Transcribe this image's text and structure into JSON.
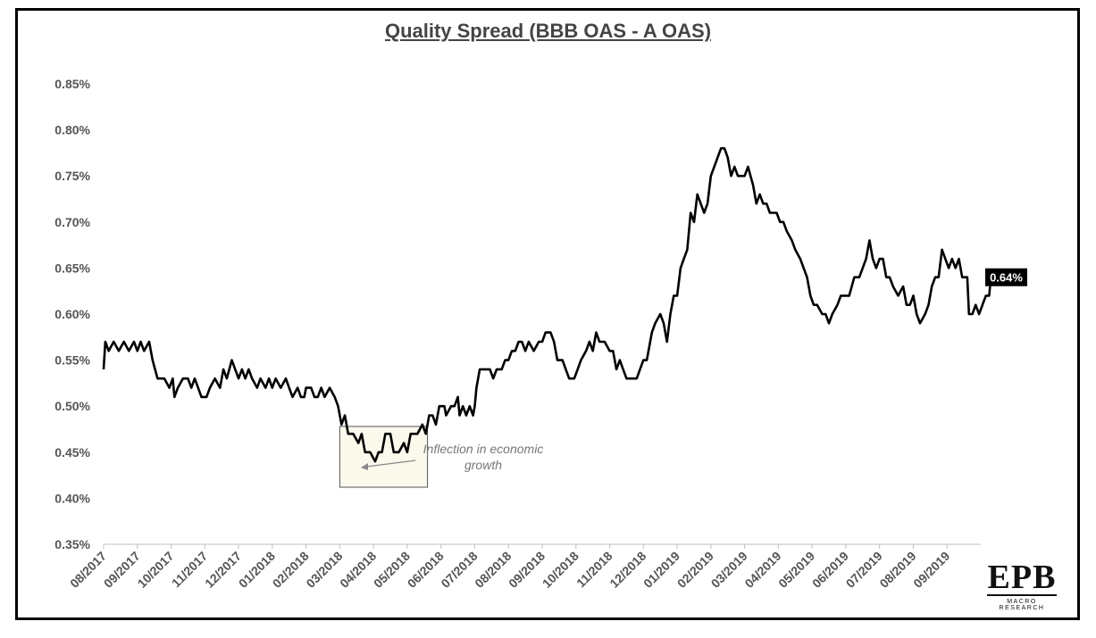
{
  "chart_data": {
    "type": "line",
    "title": "Quality Spread (BBB OAS - A OAS)",
    "xlabel": "",
    "ylabel": "",
    "ylim": [
      0.35,
      0.85
    ],
    "y_ticks": [
      "0.35%",
      "0.40%",
      "0.45%",
      "0.50%",
      "0.55%",
      "0.60%",
      "0.65%",
      "0.70%",
      "0.75%",
      "0.80%",
      "0.85%"
    ],
    "x_ticks": [
      "08/2017",
      "09/2017",
      "10/2017",
      "11/2017",
      "12/2017",
      "01/2018",
      "02/2018",
      "03/2018",
      "04/2018",
      "05/2018",
      "06/2018",
      "07/2018",
      "08/2018",
      "09/2018",
      "10/2018",
      "11/2018",
      "12/2018",
      "01/2019",
      "02/2019",
      "03/2019",
      "04/2019",
      "05/2019",
      "06/2019",
      "07/2019",
      "08/2019",
      "09/2019"
    ],
    "x_range_months": [
      0,
      26
    ],
    "grid": false,
    "legend": "none",
    "line_color": "#000000",
    "series": [
      {
        "name": "",
        "points": [
          [
            0.0,
            0.54
          ],
          [
            0.05,
            0.57
          ],
          [
            0.15,
            0.56
          ],
          [
            0.3,
            0.57
          ],
          [
            0.45,
            0.56
          ],
          [
            0.6,
            0.57
          ],
          [
            0.75,
            0.56
          ],
          [
            0.9,
            0.57
          ],
          [
            1.0,
            0.56
          ],
          [
            1.1,
            0.57
          ],
          [
            1.2,
            0.56
          ],
          [
            1.35,
            0.57
          ],
          [
            1.45,
            0.55
          ],
          [
            1.6,
            0.53
          ],
          [
            1.8,
            0.53
          ],
          [
            1.95,
            0.52
          ],
          [
            2.05,
            0.53
          ],
          [
            2.1,
            0.51
          ],
          [
            2.2,
            0.52
          ],
          [
            2.35,
            0.53
          ],
          [
            2.5,
            0.53
          ],
          [
            2.6,
            0.52
          ],
          [
            2.7,
            0.53
          ],
          [
            2.8,
            0.52
          ],
          [
            2.9,
            0.51
          ],
          [
            3.05,
            0.51
          ],
          [
            3.15,
            0.52
          ],
          [
            3.3,
            0.53
          ],
          [
            3.45,
            0.52
          ],
          [
            3.55,
            0.54
          ],
          [
            3.65,
            0.53
          ],
          [
            3.8,
            0.55
          ],
          [
            3.9,
            0.54
          ],
          [
            4.0,
            0.53
          ],
          [
            4.1,
            0.54
          ],
          [
            4.2,
            0.53
          ],
          [
            4.3,
            0.54
          ],
          [
            4.4,
            0.53
          ],
          [
            4.55,
            0.52
          ],
          [
            4.65,
            0.53
          ],
          [
            4.8,
            0.52
          ],
          [
            4.9,
            0.53
          ],
          [
            5.0,
            0.52
          ],
          [
            5.1,
            0.53
          ],
          [
            5.25,
            0.52
          ],
          [
            5.4,
            0.53
          ],
          [
            5.5,
            0.52
          ],
          [
            5.6,
            0.51
          ],
          [
            5.75,
            0.52
          ],
          [
            5.85,
            0.51
          ],
          [
            5.95,
            0.51
          ],
          [
            6.0,
            0.52
          ],
          [
            6.15,
            0.52
          ],
          [
            6.25,
            0.51
          ],
          [
            6.35,
            0.51
          ],
          [
            6.45,
            0.52
          ],
          [
            6.55,
            0.51
          ],
          [
            6.7,
            0.52
          ],
          [
            6.85,
            0.51
          ],
          [
            6.95,
            0.5
          ],
          [
            7.05,
            0.48
          ],
          [
            7.15,
            0.49
          ],
          [
            7.25,
            0.47
          ],
          [
            7.4,
            0.47
          ],
          [
            7.55,
            0.46
          ],
          [
            7.65,
            0.47
          ],
          [
            7.75,
            0.45
          ],
          [
            7.9,
            0.45
          ],
          [
            8.05,
            0.44
          ],
          [
            8.15,
            0.45
          ],
          [
            8.25,
            0.45
          ],
          [
            8.35,
            0.47
          ],
          [
            8.5,
            0.47
          ],
          [
            8.6,
            0.45
          ],
          [
            8.75,
            0.45
          ],
          [
            8.9,
            0.46
          ],
          [
            9.0,
            0.45
          ],
          [
            9.1,
            0.47
          ],
          [
            9.3,
            0.47
          ],
          [
            9.45,
            0.48
          ],
          [
            9.55,
            0.47
          ],
          [
            9.65,
            0.49
          ],
          [
            9.75,
            0.49
          ],
          [
            9.85,
            0.48
          ],
          [
            9.95,
            0.5
          ],
          [
            10.1,
            0.5
          ],
          [
            10.15,
            0.49
          ],
          [
            10.3,
            0.5
          ],
          [
            10.4,
            0.5
          ],
          [
            10.5,
            0.51
          ],
          [
            10.55,
            0.49
          ],
          [
            10.65,
            0.5
          ],
          [
            10.75,
            0.49
          ],
          [
            10.85,
            0.5
          ],
          [
            10.95,
            0.49
          ],
          [
            11.0,
            0.5
          ],
          [
            11.05,
            0.52
          ],
          [
            11.15,
            0.54
          ],
          [
            11.3,
            0.54
          ],
          [
            11.45,
            0.54
          ],
          [
            11.55,
            0.53
          ],
          [
            11.65,
            0.54
          ],
          [
            11.8,
            0.54
          ],
          [
            11.9,
            0.55
          ],
          [
            12.0,
            0.55
          ],
          [
            12.1,
            0.56
          ],
          [
            12.2,
            0.56
          ],
          [
            12.3,
            0.57
          ],
          [
            12.4,
            0.57
          ],
          [
            12.5,
            0.56
          ],
          [
            12.6,
            0.57
          ],
          [
            12.75,
            0.56
          ],
          [
            12.9,
            0.57
          ],
          [
            13.0,
            0.57
          ],
          [
            13.1,
            0.58
          ],
          [
            13.25,
            0.58
          ],
          [
            13.35,
            0.57
          ],
          [
            13.45,
            0.55
          ],
          [
            13.6,
            0.55
          ],
          [
            13.7,
            0.54
          ],
          [
            13.8,
            0.53
          ],
          [
            13.95,
            0.53
          ],
          [
            14.05,
            0.54
          ],
          [
            14.15,
            0.55
          ],
          [
            14.3,
            0.56
          ],
          [
            14.4,
            0.57
          ],
          [
            14.5,
            0.56
          ],
          [
            14.6,
            0.58
          ],
          [
            14.7,
            0.57
          ],
          [
            14.85,
            0.57
          ],
          [
            15.0,
            0.56
          ],
          [
            15.1,
            0.56
          ],
          [
            15.2,
            0.54
          ],
          [
            15.3,
            0.55
          ],
          [
            15.4,
            0.54
          ],
          [
            15.5,
            0.53
          ],
          [
            15.65,
            0.53
          ],
          [
            15.8,
            0.53
          ],
          [
            15.9,
            0.54
          ],
          [
            16.0,
            0.55
          ],
          [
            16.1,
            0.55
          ],
          [
            16.25,
            0.58
          ],
          [
            16.35,
            0.59
          ],
          [
            16.5,
            0.6
          ],
          [
            16.6,
            0.59
          ],
          [
            16.7,
            0.57
          ],
          [
            16.8,
            0.6
          ],
          [
            16.9,
            0.62
          ],
          [
            17.0,
            0.62
          ],
          [
            17.1,
            0.65
          ],
          [
            17.2,
            0.66
          ],
          [
            17.3,
            0.67
          ],
          [
            17.4,
            0.71
          ],
          [
            17.5,
            0.7
          ],
          [
            17.6,
            0.73
          ],
          [
            17.7,
            0.72
          ],
          [
            17.8,
            0.71
          ],
          [
            17.9,
            0.72
          ],
          [
            18.0,
            0.75
          ],
          [
            18.1,
            0.76
          ],
          [
            18.2,
            0.77
          ],
          [
            18.3,
            0.78
          ],
          [
            18.4,
            0.78
          ],
          [
            18.5,
            0.77
          ],
          [
            18.6,
            0.75
          ],
          [
            18.7,
            0.76
          ],
          [
            18.8,
            0.75
          ],
          [
            19.0,
            0.75
          ],
          [
            19.1,
            0.76
          ],
          [
            19.25,
            0.74
          ],
          [
            19.35,
            0.72
          ],
          [
            19.45,
            0.73
          ],
          [
            19.55,
            0.72
          ],
          [
            19.65,
            0.72
          ],
          [
            19.75,
            0.71
          ],
          [
            19.85,
            0.71
          ],
          [
            19.95,
            0.71
          ],
          [
            20.05,
            0.7
          ],
          [
            20.15,
            0.7
          ],
          [
            20.25,
            0.69
          ],
          [
            20.4,
            0.68
          ],
          [
            20.5,
            0.67
          ],
          [
            20.65,
            0.66
          ],
          [
            20.75,
            0.65
          ],
          [
            20.85,
            0.64
          ],
          [
            20.95,
            0.62
          ],
          [
            21.05,
            0.61
          ],
          [
            21.15,
            0.61
          ],
          [
            21.3,
            0.6
          ],
          [
            21.4,
            0.6
          ],
          [
            21.5,
            0.59
          ],
          [
            21.6,
            0.6
          ],
          [
            21.75,
            0.61
          ],
          [
            21.85,
            0.62
          ],
          [
            22.0,
            0.62
          ],
          [
            22.1,
            0.62
          ],
          [
            22.25,
            0.64
          ],
          [
            22.4,
            0.64
          ],
          [
            22.5,
            0.65
          ],
          [
            22.6,
            0.66
          ],
          [
            22.7,
            0.68
          ],
          [
            22.8,
            0.66
          ],
          [
            22.9,
            0.65
          ],
          [
            23.0,
            0.66
          ],
          [
            23.1,
            0.66
          ],
          [
            23.2,
            0.64
          ],
          [
            23.3,
            0.64
          ],
          [
            23.4,
            0.63
          ],
          [
            23.55,
            0.62
          ],
          [
            23.7,
            0.63
          ],
          [
            23.8,
            0.61
          ],
          [
            23.9,
            0.61
          ],
          [
            24.0,
            0.62
          ],
          [
            24.1,
            0.6
          ],
          [
            24.2,
            0.59
          ],
          [
            24.35,
            0.6
          ],
          [
            24.45,
            0.61
          ],
          [
            24.55,
            0.63
          ],
          [
            24.65,
            0.64
          ],
          [
            24.75,
            0.64
          ],
          [
            24.85,
            0.67
          ],
          [
            24.95,
            0.66
          ],
          [
            25.05,
            0.65
          ],
          [
            25.15,
            0.66
          ],
          [
            25.25,
            0.65
          ],
          [
            25.35,
            0.66
          ],
          [
            25.45,
            0.64
          ],
          [
            25.6,
            0.64
          ],
          [
            25.65,
            0.6
          ],
          [
            25.75,
            0.6
          ],
          [
            25.85,
            0.61
          ],
          [
            25.95,
            0.6
          ],
          [
            26.05,
            0.61
          ],
          [
            26.15,
            0.62
          ],
          [
            26.25,
            0.62
          ],
          [
            26.3,
            0.64
          ]
        ]
      }
    ],
    "last_value_label": "0.64%",
    "annotation": {
      "text_line1": "Inflection in economic",
      "text_line2": "growth",
      "box_x_range": [
        7.0,
        9.6
      ],
      "box_y_range": [
        0.412,
        0.478
      ],
      "box_fill": "#fbf8ec"
    }
  },
  "logo": {
    "main": "EPB",
    "sub": "MACRO RESEARCH"
  }
}
